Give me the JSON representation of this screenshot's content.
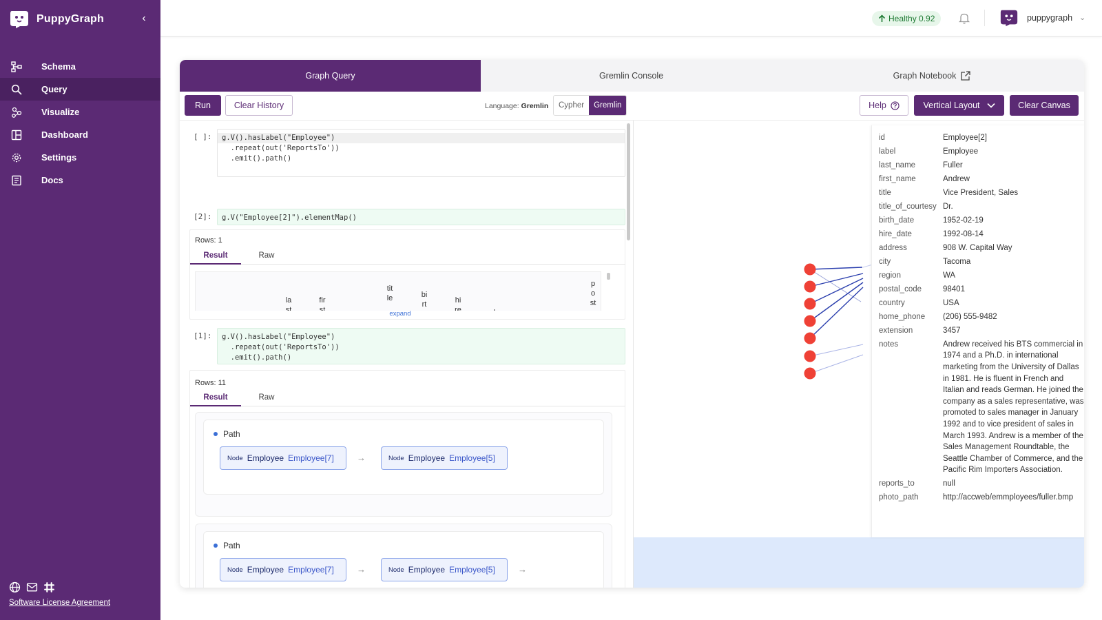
{
  "brand": {
    "name": "PuppyGraph"
  },
  "sidebar": {
    "items": [
      {
        "label": "Schema",
        "icon": "schema-icon"
      },
      {
        "label": "Query",
        "icon": "search-icon"
      },
      {
        "label": "Visualize",
        "icon": "visualize-icon"
      },
      {
        "label": "Dashboard",
        "icon": "dashboard-icon"
      },
      {
        "label": "Settings",
        "icon": "gear-icon"
      },
      {
        "label": "Docs",
        "icon": "docs-icon"
      }
    ],
    "active": "Query",
    "footer": {
      "license": "Software License Agreement"
    }
  },
  "topbar": {
    "health": "Healthy 0.92",
    "user": "puppygraph"
  },
  "tabs": [
    {
      "label": "Graph Query"
    },
    {
      "label": "Gremlin Console"
    },
    {
      "label": "Graph Notebook"
    }
  ],
  "toolbar": {
    "run": "Run",
    "clear_history": "Clear History",
    "language_label": "Language:",
    "language_value": "Gremlin",
    "lang_options": [
      "Cypher",
      "Gremlin"
    ],
    "help": "Help",
    "layout": "Vertical Layout",
    "clear_canvas": "Clear Canvas"
  },
  "cells": {
    "c0": {
      "prompt": "[ ]:",
      "line1": "g.V().hasLabel(\"Employee\")",
      "line2": "  .repeat(out('ReportsTo'))",
      "line3": "  .emit().path()"
    },
    "c2": {
      "prompt": "[2]:",
      "code": "g.V(\"Employee[2]\").elementMap()",
      "rows": "Rows: 1",
      "tab_result": "Result",
      "tab_raw": "Raw",
      "expand": "expand",
      "columns": [
        "la\nst",
        "fir\nst",
        "tit\nle\n_",
        "bi\nrt",
        "hi\nre",
        "ad",
        "p\no\nst"
      ]
    },
    "c1": {
      "prompt": "[1]:",
      "line1": "g.V().hasLabel(\"Employee\")",
      "line2": "  .repeat(out('ReportsTo'))",
      "line3": "  .emit().path()",
      "rows": "Rows: 11",
      "tab_result": "Result",
      "tab_raw": "Raw",
      "path_label": "Path",
      "node_kind": "Node",
      "node_label": "Employee",
      "path1": [
        "Employee[7]",
        "Employee[5]"
      ],
      "path2": [
        "Employee[7]",
        "Employee[5]"
      ]
    }
  },
  "properties": [
    {
      "k": "id",
      "v": "Employee[2]"
    },
    {
      "k": "label",
      "v": "Employee"
    },
    {
      "k": "last_name",
      "v": "Fuller"
    },
    {
      "k": "first_name",
      "v": "Andrew"
    },
    {
      "k": "title",
      "v": "Vice President, Sales"
    },
    {
      "k": "title_of_courtesy",
      "v": "Dr."
    },
    {
      "k": "birth_date",
      "v": "1952-02-19"
    },
    {
      "k": "hire_date",
      "v": "1992-08-14"
    },
    {
      "k": "address",
      "v": "908 W. Capital Way"
    },
    {
      "k": "city",
      "v": "Tacoma"
    },
    {
      "k": "region",
      "v": "WA"
    },
    {
      "k": "postal_code",
      "v": "98401"
    },
    {
      "k": "country",
      "v": "USA"
    },
    {
      "k": "home_phone",
      "v": "(206) 555-9482"
    },
    {
      "k": "extension",
      "v": "3457"
    },
    {
      "k": "notes",
      "v": "Andrew received his BTS commercial in 1974 and a Ph.D. in international marketing from the University of Dallas in 1981. He is fluent in French and Italian and reads German. He joined the company as a sales representative, was promoted to sales manager in January 1992 and to vice president of sales in March 1993. Andrew is a member of the Sales Management Roundtable, the Seattle Chamber of Commerce, and the Pacific Rim Importers Association."
    },
    {
      "k": "reports_to",
      "v": "null"
    },
    {
      "k": "photo_path",
      "v": "http://accweb/emmployees/fuller.bmp"
    }
  ],
  "colors": {
    "brand": "#5b2a74",
    "node": "#ef4136",
    "edge": "#2b3fae",
    "canvas_bottom": "#dde9fc"
  }
}
